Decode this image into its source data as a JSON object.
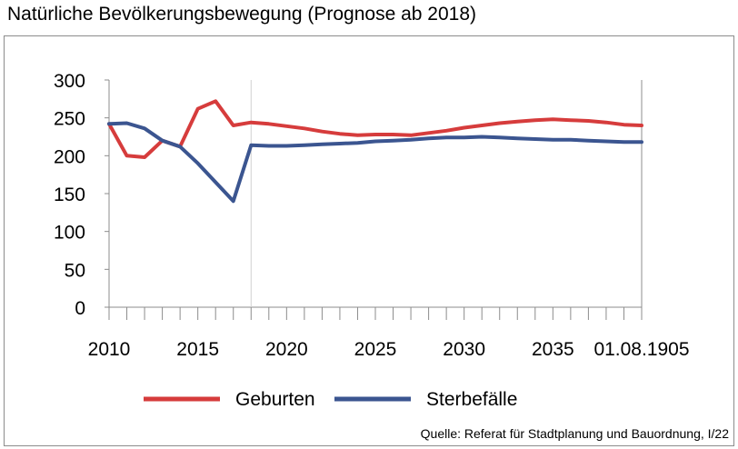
{
  "title": "Natürliche Bevölkerungsbewegung (Prognose ab 2018)",
  "source": "Quelle: Referat für Stadtplanung und Bauordnung, I/22",
  "chart_data": {
    "type": "line",
    "title": "Natürliche Bevölkerungsbewegung (Prognose ab 2018)",
    "x": [
      2010,
      2011,
      2012,
      2013,
      2014,
      2015,
      2016,
      2017,
      2018,
      2019,
      2020,
      2021,
      2022,
      2023,
      2024,
      2025,
      2026,
      2027,
      2028,
      2029,
      2030,
      2031,
      2032,
      2033,
      2034,
      2035,
      2036,
      2037,
      2038,
      2039,
      2040
    ],
    "x_tick_labels": [
      "2010",
      "2015",
      "2020",
      "2025",
      "2030",
      "2035",
      "01.08.1905"
    ],
    "ylim": [
      0,
      300
    ],
    "y_ticks": [
      0,
      50,
      100,
      150,
      200,
      250,
      300
    ],
    "grid": false,
    "legend_position": "bottom",
    "series": [
      {
        "name": "Geburten",
        "color": "#d63c3c",
        "values": [
          242,
          200,
          198,
          220,
          212,
          262,
          272,
          240,
          244,
          242,
          239,
          236,
          232,
          229,
          227,
          228,
          228,
          227,
          230,
          233,
          237,
          240,
          243,
          245,
          247,
          248,
          247,
          246,
          244,
          241,
          240
        ]
      },
      {
        "name": "Sterbefälle",
        "color": "#3b5590",
        "values": [
          242,
          243,
          236,
          220,
          212,
          190,
          165,
          140,
          214,
          213,
          213,
          214,
          215,
          216,
          217,
          219,
          220,
          221,
          223,
          224,
          224,
          225,
          224,
          223,
          222,
          221,
          221,
          220,
          219,
          218,
          218
        ]
      }
    ]
  }
}
